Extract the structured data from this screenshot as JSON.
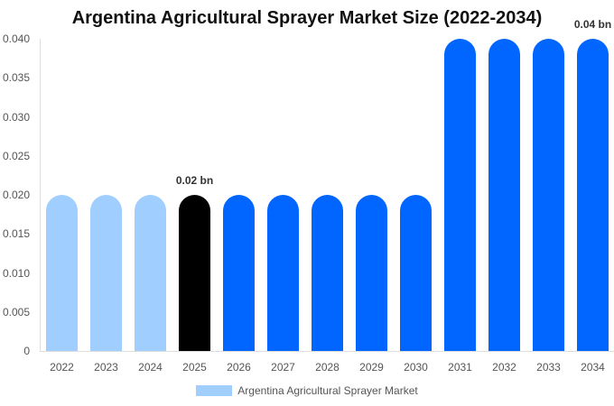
{
  "chart_data": {
    "type": "bar",
    "title": "Argentina Agricultural Sprayer Market Size (2022-2034)",
    "xlabel": "",
    "ylabel": "",
    "ylim": [
      0,
      0.04
    ],
    "yticks": [
      "0",
      "0.005",
      "0.010",
      "0.015",
      "0.020",
      "0.025",
      "0.030",
      "0.035",
      "0.040"
    ],
    "grid": false,
    "legend_position": "bottom",
    "categories": [
      "2022",
      "2023",
      "2024",
      "2025",
      "2026",
      "2027",
      "2028",
      "2029",
      "2030",
      "2031",
      "2032",
      "2033",
      "2034"
    ],
    "series": [
      {
        "name": "Argentina Agricultural Sprayer Market",
        "values": [
          0.02,
          0.02,
          0.02,
          0.02,
          0.02,
          0.02,
          0.02,
          0.02,
          0.02,
          0.04,
          0.04,
          0.04,
          0.04
        ]
      }
    ],
    "bar_colors": [
      "#a0cfff",
      "#a0cfff",
      "#a0cfff",
      "#000000",
      "#0066ff",
      "#0066ff",
      "#0066ff",
      "#0066ff",
      "#0066ff",
      "#0066ff",
      "#0066ff",
      "#0066ff",
      "#0066ff"
    ],
    "annotations": [
      {
        "category": "2025",
        "text": "0.02 bn"
      },
      {
        "category": "2034",
        "text": "0.04 bn"
      }
    ]
  },
  "legend": {
    "label": "Argentina Agricultural Sprayer Market",
    "color": "#a0cfff"
  }
}
